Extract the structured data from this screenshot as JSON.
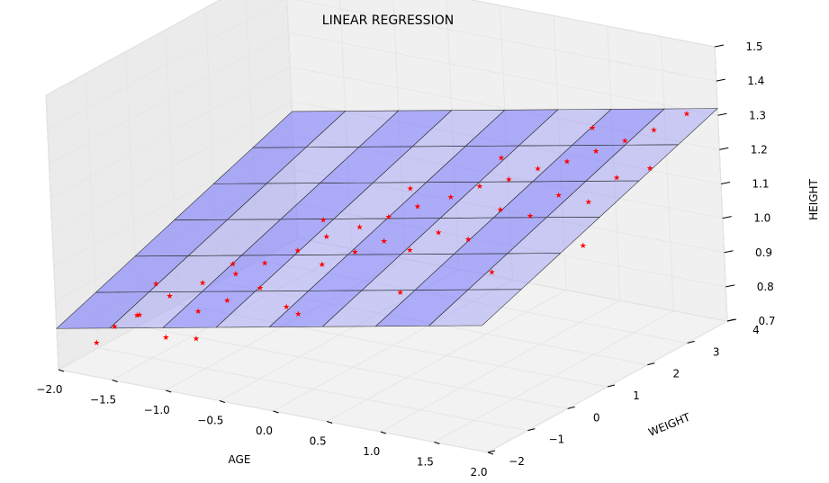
{
  "chart_data": {
    "type": "scatter",
    "subtype": "3d-scatter-with-regression-plane",
    "title": "LINEAR REGRESSION",
    "xlabel": "AGE",
    "ylabel": "WEIGHT",
    "zlabel": "HEIGHT",
    "xlim": [
      -2.0,
      2.0
    ],
    "ylim": [
      -2,
      4
    ],
    "zlim": [
      0.7,
      1.5
    ],
    "xticks": [
      "−2.0",
      "−1.5",
      "−1.0",
      "−0.5",
      "0.0",
      "0.5",
      "1.0",
      "1.5",
      "2.0"
    ],
    "yticks": [
      "−2",
      "−1",
      "0",
      "1",
      "2",
      "3",
      "4"
    ],
    "zticks": [
      "0.7",
      "0.8",
      "0.9",
      "1.0",
      "1.1",
      "1.2",
      "1.3",
      "1.4",
      "1.5"
    ],
    "grid": true,
    "colors": {
      "points": "#ff0000",
      "plane_fill": "#6666ff",
      "plane_edge": "#000000",
      "pane": "#f2f2f2",
      "grid": "#e6e6e6"
    },
    "plane": {
      "z_at_min_x_min_y": 0.82,
      "z_at_max_x_max_y": 1.32
    },
    "points": [
      {
        "x": -1.9,
        "y": -1.3,
        "z": 0.74
      },
      {
        "x": -1.8,
        "y": -1.1,
        "z": 0.78
      },
      {
        "x": -1.7,
        "y": -0.8,
        "z": 0.8
      },
      {
        "x": -1.6,
        "y": -1.0,
        "z": 0.82
      },
      {
        "x": -1.5,
        "y": -0.5,
        "z": 0.85
      },
      {
        "x": -1.4,
        "y": -0.9,
        "z": 0.76
      },
      {
        "x": -1.3,
        "y": -0.2,
        "z": 0.88
      },
      {
        "x": -1.2,
        "y": -0.6,
        "z": 0.83
      },
      {
        "x": -1.1,
        "y": 0.1,
        "z": 0.9
      },
      {
        "x": -1.0,
        "y": -0.4,
        "z": 0.86
      },
      {
        "x": -0.9,
        "y": 0.3,
        "z": 0.93
      },
      {
        "x": -0.8,
        "y": -0.1,
        "z": 0.89
      },
      {
        "x": -0.7,
        "y": 0.6,
        "z": 0.96
      },
      {
        "x": -0.6,
        "y": 0.0,
        "z": 0.84
      },
      {
        "x": -0.5,
        "y": 0.8,
        "z": 1.0
      },
      {
        "x": -0.4,
        "y": 0.4,
        "z": 0.95
      },
      {
        "x": -0.3,
        "y": 1.1,
        "z": 1.02
      },
      {
        "x": -0.2,
        "y": 0.7,
        "z": 0.98
      },
      {
        "x": -0.1,
        "y": 1.3,
        "z": 1.05
      },
      {
        "x": 0.0,
        "y": 0.9,
        "z": 1.01
      },
      {
        "x": 0.1,
        "y": 1.5,
        "z": 1.08
      },
      {
        "x": 0.2,
        "y": 1.0,
        "z": 0.99
      },
      {
        "x": 0.3,
        "y": 1.8,
        "z": 1.1
      },
      {
        "x": 0.4,
        "y": 1.2,
        "z": 1.04
      },
      {
        "x": 0.5,
        "y": 2.0,
        "z": 1.13
      },
      {
        "x": 0.6,
        "y": 1.4,
        "z": 1.02
      },
      {
        "x": 0.7,
        "y": 2.2,
        "z": 1.15
      },
      {
        "x": 0.8,
        "y": 1.7,
        "z": 1.1
      },
      {
        "x": 0.9,
        "y": 2.4,
        "z": 1.18
      },
      {
        "x": 1.0,
        "y": 1.9,
        "z": 1.08
      },
      {
        "x": 1.1,
        "y": 2.6,
        "z": 1.2
      },
      {
        "x": 1.2,
        "y": 2.1,
        "z": 1.14
      },
      {
        "x": 1.3,
        "y": 2.8,
        "z": 1.23
      },
      {
        "x": 1.4,
        "y": 2.3,
        "z": 1.12
      },
      {
        "x": 1.5,
        "y": 3.0,
        "z": 1.26
      },
      {
        "x": 1.6,
        "y": 2.5,
        "z": 1.19
      },
      {
        "x": 1.7,
        "y": 3.2,
        "z": 1.29
      },
      {
        "x": 1.8,
        "y": 2.8,
        "z": 1.21
      },
      {
        "x": 1.9,
        "y": 3.5,
        "z": 1.33
      },
      {
        "x": -1.7,
        "y": -0.3,
        "z": 0.86
      },
      {
        "x": -1.2,
        "y": 0.3,
        "z": 0.91
      },
      {
        "x": -0.6,
        "y": 1.0,
        "z": 1.03
      },
      {
        "x": 0.0,
        "y": 1.6,
        "z": 1.12
      },
      {
        "x": 0.6,
        "y": 2.3,
        "z": 1.2
      },
      {
        "x": 1.2,
        "y": 3.0,
        "z": 1.28
      },
      {
        "x": -1.0,
        "y": -1.2,
        "z": 0.8
      },
      {
        "x": -0.3,
        "y": -0.5,
        "z": 0.87
      },
      {
        "x": 0.4,
        "y": 0.2,
        "z": 0.93
      },
      {
        "x": 1.0,
        "y": 0.9,
        "z": 0.98
      },
      {
        "x": 1.6,
        "y": 1.6,
        "z": 1.05
      }
    ]
  }
}
